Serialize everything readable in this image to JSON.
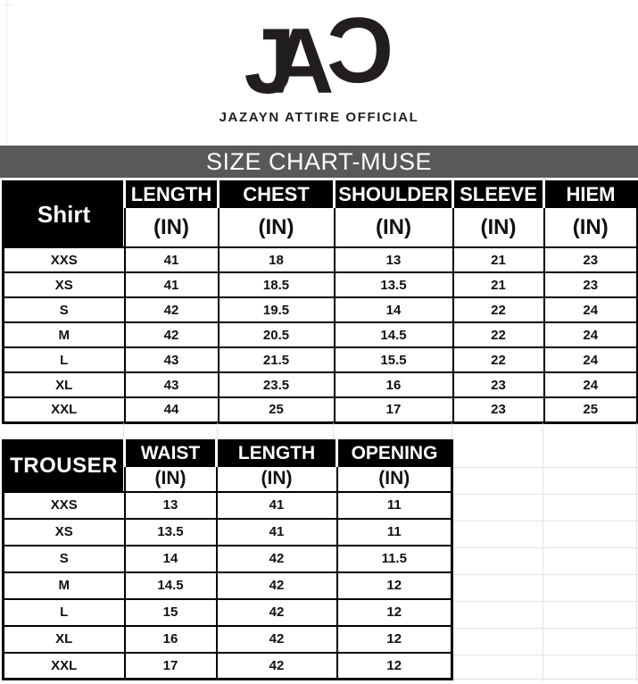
{
  "brand": {
    "logo_j": "J",
    "logo_a": "A",
    "logo_c": "C",
    "wordmark": "JAZAYN ATTIRE OFFICIAL"
  },
  "banner": {
    "title": "SIZE CHART-MUSE",
    "background": "#595959",
    "text_color": "#ffffff"
  },
  "shirt_table": {
    "section_label": "Shirt",
    "unit_label": "(IN)",
    "columns": [
      "LENGTH",
      "CHEST",
      "SHOULDER",
      "SLEEVE",
      "HIEM"
    ],
    "rows": [
      {
        "size": "XXS",
        "values": [
          "41",
          "18",
          "13",
          "21",
          "23"
        ]
      },
      {
        "size": "XS",
        "values": [
          "41",
          "18.5",
          "13.5",
          "21",
          "23"
        ]
      },
      {
        "size": "S",
        "values": [
          "42",
          "19.5",
          "14",
          "22",
          "24"
        ]
      },
      {
        "size": "M",
        "values": [
          "42",
          "20.5",
          "14.5",
          "22",
          "24"
        ]
      },
      {
        "size": "L",
        "values": [
          "43",
          "21.5",
          "15.5",
          "22",
          "24"
        ]
      },
      {
        "size": "XL",
        "values": [
          "43",
          "23.5",
          "16",
          "23",
          "24"
        ]
      },
      {
        "size": "XXL",
        "values": [
          "44",
          "25",
          "17",
          "23",
          "25"
        ]
      }
    ]
  },
  "trouser_table": {
    "section_label": "TROUSER",
    "unit_label": "(IN)",
    "columns": [
      "WAIST",
      "LENGTH",
      "OPENING"
    ],
    "rows": [
      {
        "size": "XXS",
        "values": [
          "13",
          "41",
          "11"
        ]
      },
      {
        "size": "XS",
        "values": [
          "13.5",
          "41",
          "11"
        ]
      },
      {
        "size": "S",
        "values": [
          "14",
          "42",
          "11.5"
        ]
      },
      {
        "size": "M",
        "values": [
          "14.5",
          "42",
          "12"
        ]
      },
      {
        "size": "L",
        "values": [
          "15",
          "42",
          "12"
        ]
      },
      {
        "size": "XL",
        "values": [
          "16",
          "42",
          "12"
        ]
      },
      {
        "size": "XXL",
        "values": [
          "17",
          "42",
          "12"
        ]
      }
    ]
  },
  "colors": {
    "table_header_bg": "#000000",
    "table_header_text": "#ffffff",
    "cell_text": "#111111",
    "table_border": "#000000",
    "faint_gridline": "#e2e2e2",
    "banner_bg": "#595959"
  }
}
